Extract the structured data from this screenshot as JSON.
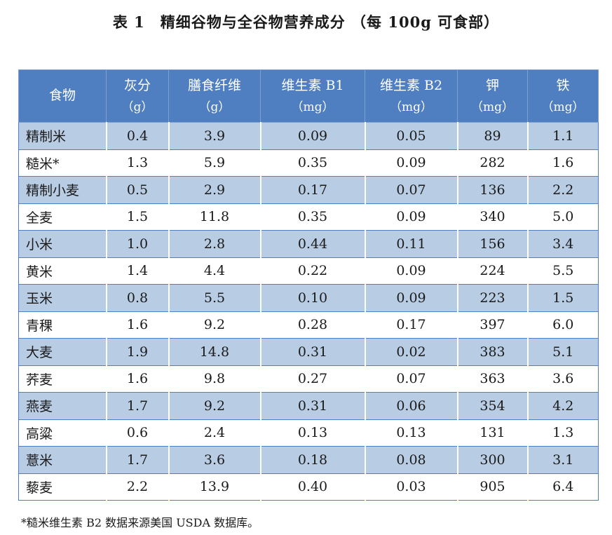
{
  "title": "表 1　精细谷物与全谷物营养成分 （每 100g 可食部）",
  "table": {
    "headers": [
      {
        "name": "食物",
        "unit": ""
      },
      {
        "name": "灰分",
        "unit": "（g）"
      },
      {
        "name": "膳食纤维",
        "unit": "（g）"
      },
      {
        "name": "维生素 B1",
        "unit": "（mg）"
      },
      {
        "name": "维生素 B2",
        "unit": "（mg）"
      },
      {
        "name": "钾",
        "unit": "（mg）"
      },
      {
        "name": "铁",
        "unit": "（mg）"
      }
    ],
    "rows": [
      [
        "精制米",
        "0.4",
        "3.9",
        "0.09",
        "0.05",
        "89",
        "1.1"
      ],
      [
        "糙米*",
        "1.3",
        "5.9",
        "0.35",
        "0.09",
        "282",
        "1.6"
      ],
      [
        "精制小麦",
        "0.5",
        "2.9",
        "0.17",
        "0.07",
        "136",
        "2.2"
      ],
      [
        "全麦",
        "1.5",
        "11.8",
        "0.35",
        "0.09",
        "340",
        "5.0"
      ],
      [
        "小米",
        "1.0",
        "2.8",
        "0.44",
        "0.11",
        "156",
        "3.4"
      ],
      [
        "黄米",
        "1.4",
        "4.4",
        "0.22",
        "0.09",
        "224",
        "5.5"
      ],
      [
        "玉米",
        "0.8",
        "5.5",
        "0.10",
        "0.09",
        "223",
        "1.5"
      ],
      [
        "青稞",
        "1.6",
        "9.2",
        "0.28",
        "0.17",
        "397",
        "6.0"
      ],
      [
        "大麦",
        "1.9",
        "14.8",
        "0.31",
        "0.02",
        "383",
        "5.1"
      ],
      [
        "荞麦",
        "1.6",
        "9.8",
        "0.27",
        "0.07",
        "363",
        "3.6"
      ],
      [
        "燕麦",
        "1.7",
        "9.2",
        "0.31",
        "0.06",
        "354",
        "4.2"
      ],
      [
        "高粱",
        "0.6",
        "2.4",
        "0.13",
        "0.13",
        "131",
        "1.3"
      ],
      [
        "薏米",
        "1.7",
        "3.6",
        "0.18",
        "0.08",
        "300",
        "3.1"
      ],
      [
        "藜麦",
        "2.2",
        "13.9",
        "0.40",
        "0.03",
        "905",
        "6.4"
      ]
    ]
  },
  "footnote": "*糙米维生素 B2 数据来源美国 USDA 数据库。",
  "colors": {
    "header_bg": "#4f7fc0",
    "row_alt_bg": "#b8cce4"
  }
}
